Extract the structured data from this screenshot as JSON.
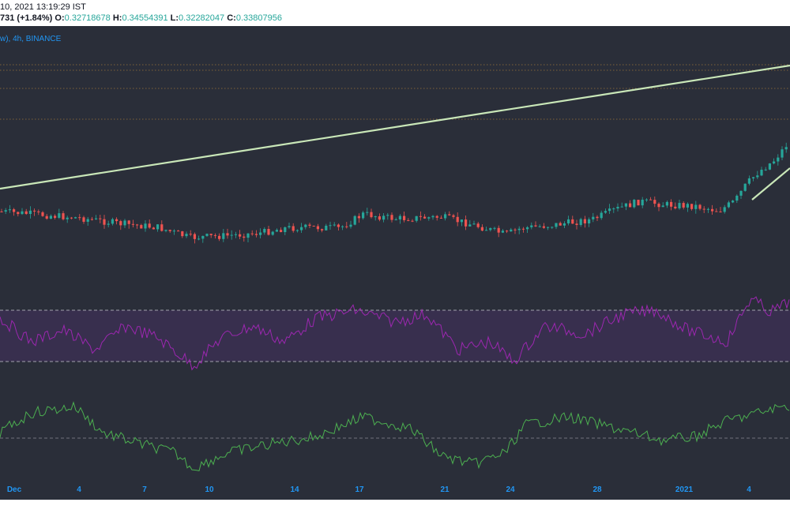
{
  "header": {
    "date_line": "10, 2021 13:19:29 IST",
    "change": "731 (+1.84%)",
    "open_label": "O:",
    "open": "0.32718678",
    "high_label": "H:",
    "high": "0.34554391",
    "low_label": "L:",
    "low": "0.32282047",
    "close_label": "C:",
    "close": "0.33807956",
    "symbol": "w), 4h, BINANCE"
  },
  "colors": {
    "background": "#2a2e39",
    "up": "#26a69a",
    "down": "#ef5350",
    "trendline": "#c9e7b8",
    "rsi": "#9c27b0",
    "rsi_band": "#3b2f52",
    "indicator2": "#4caf50",
    "axis_text": "#2196f3"
  },
  "chart_data": {
    "type": "candlestick",
    "x_axis": {
      "ticks": [
        "Dec",
        "4",
        "7",
        "10",
        "14",
        "17",
        "21",
        "24",
        "28",
        "2021",
        "4"
      ]
    },
    "price_levels_dotted": 4,
    "rsi_band": [
      30,
      70
    ],
    "trendlines": 2
  }
}
